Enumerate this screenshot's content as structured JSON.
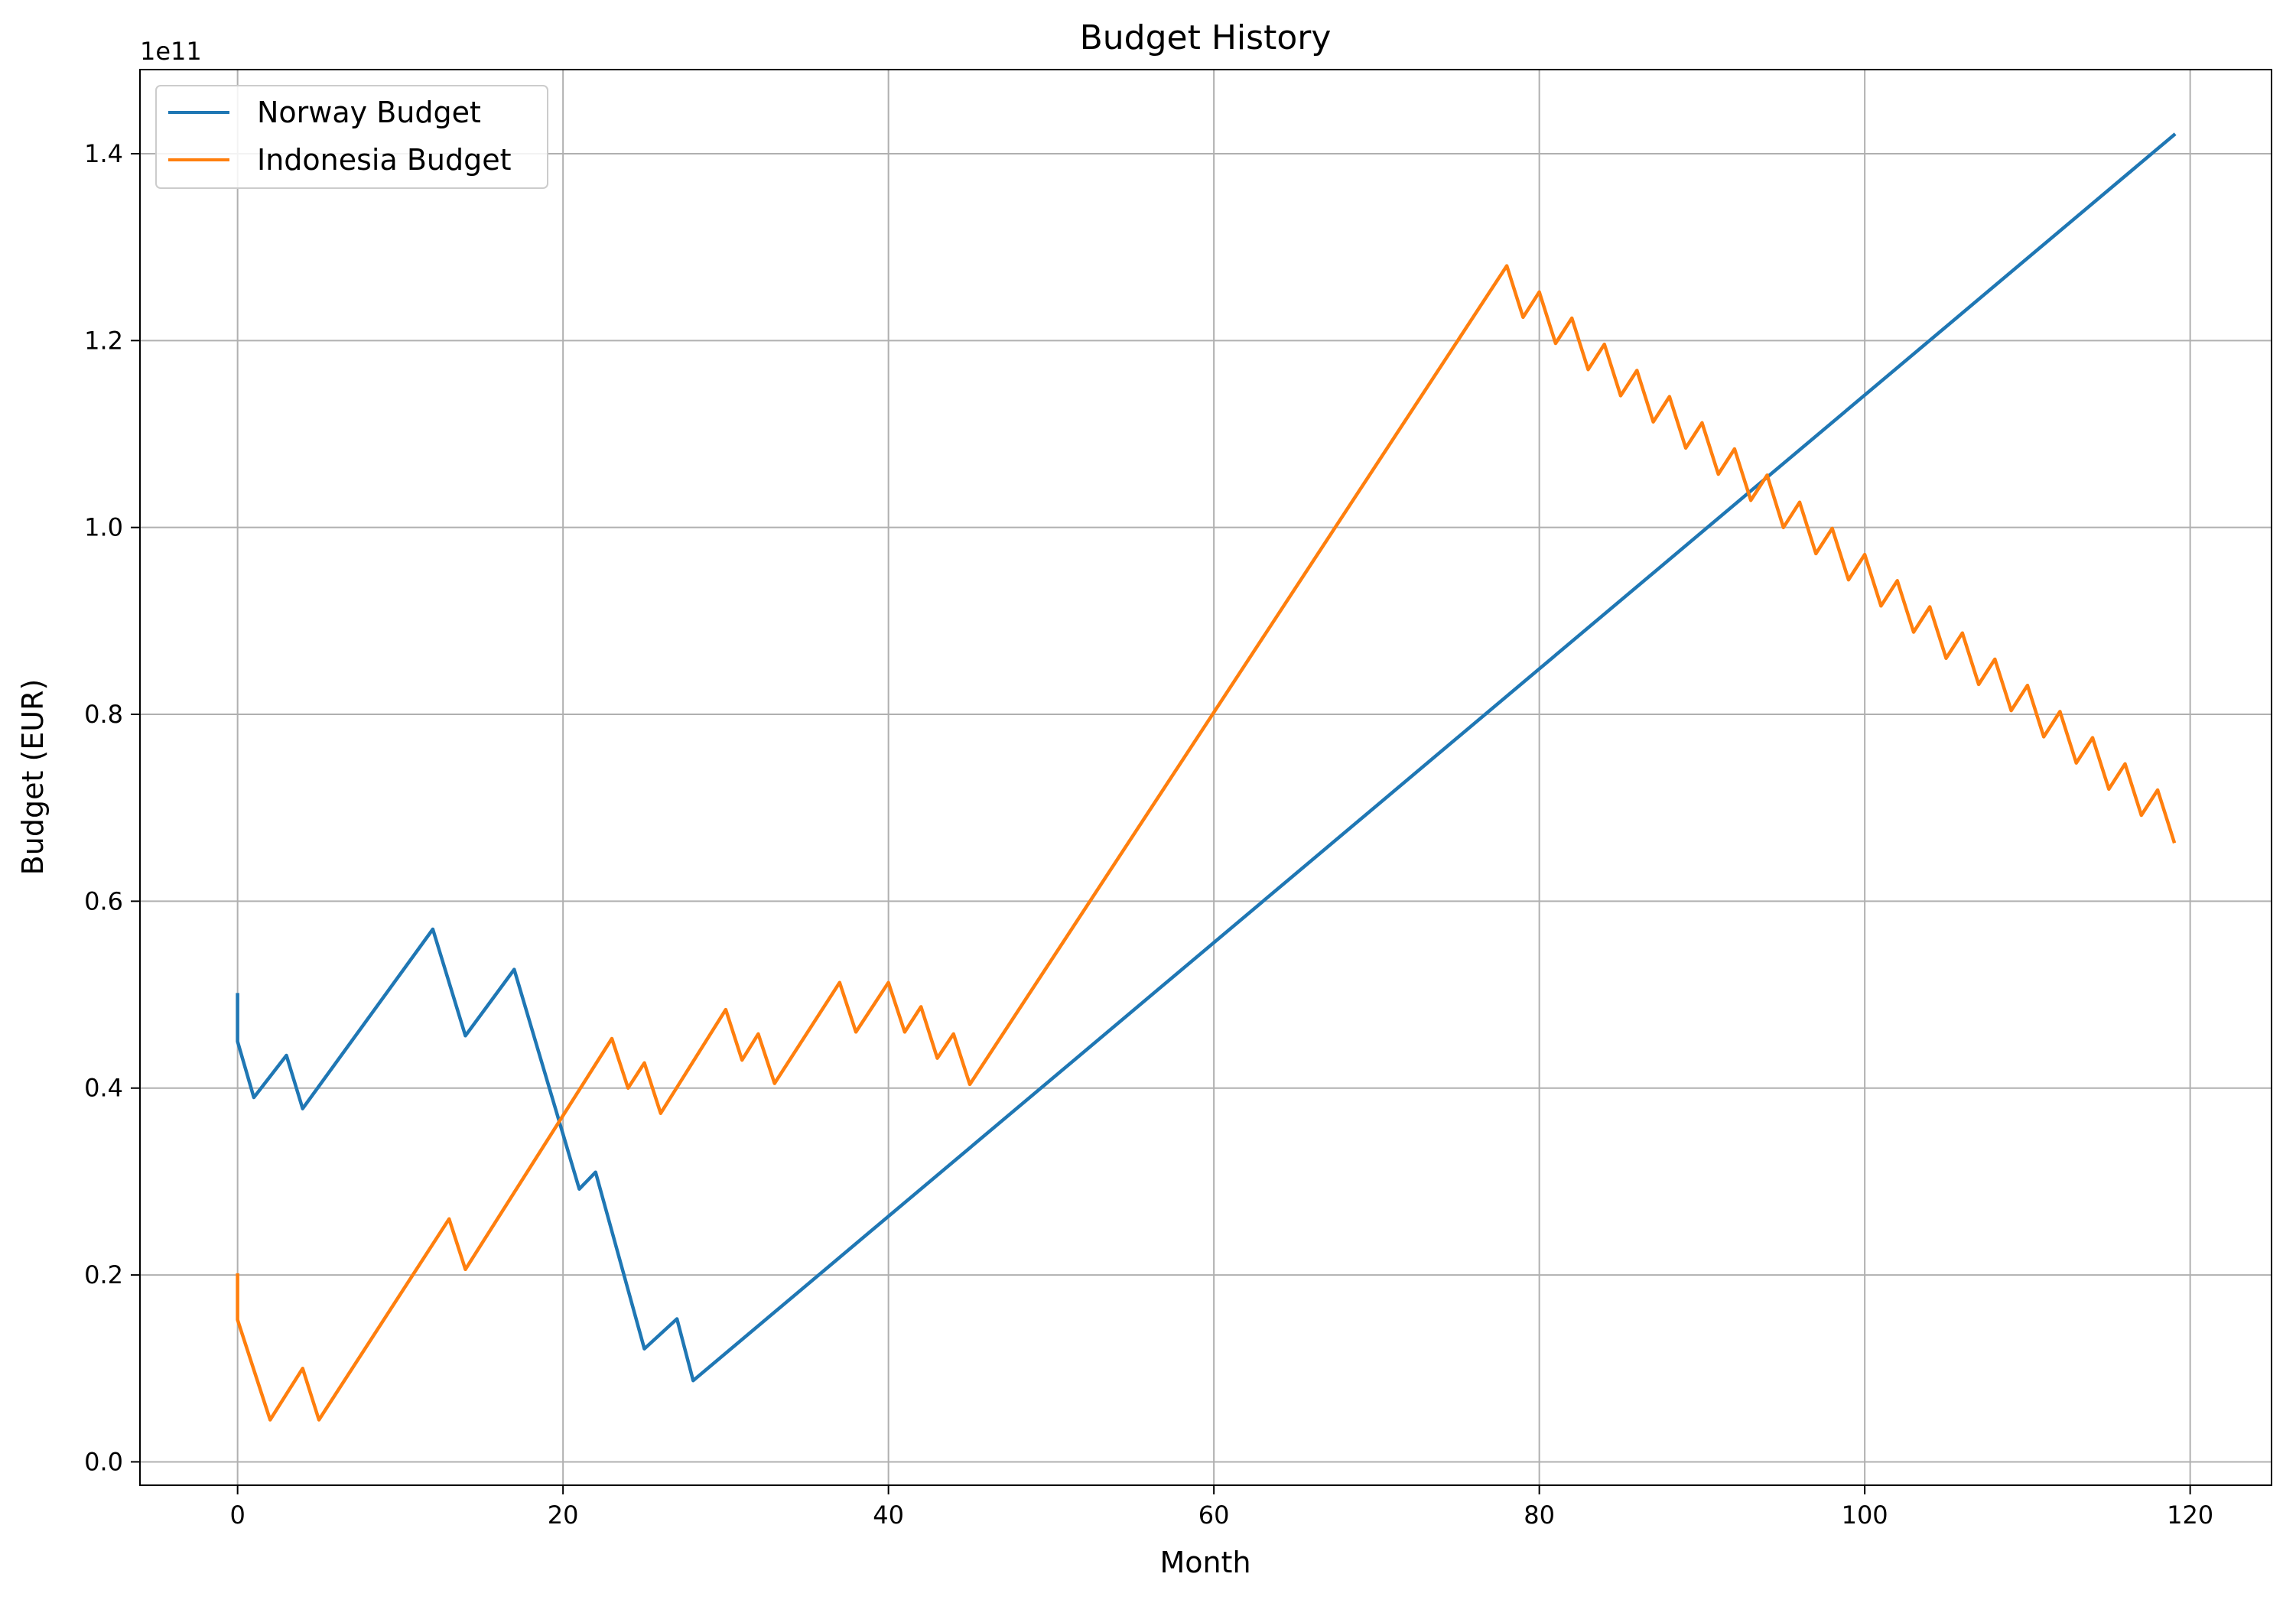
{
  "chart_data": {
    "type": "line",
    "title": "Budget History",
    "xlabel": "Month",
    "ylabel": "Budget (EUR)",
    "y_offset_label": "1e11",
    "xlim": [
      -6,
      125
    ],
    "ylim": [
      -0.025,
      1.49
    ],
    "x_ticks": [
      0,
      20,
      40,
      60,
      80,
      100,
      120
    ],
    "y_ticks": [
      0.0,
      0.2,
      0.4,
      0.6,
      0.8,
      1.0,
      1.2,
      1.4
    ],
    "y_tick_labels": [
      "0.0",
      "0.2",
      "0.4",
      "0.6",
      "0.8",
      "1.0",
      "1.2",
      "1.4"
    ],
    "grid": true,
    "legend_position": "top-left",
    "series": [
      {
        "name": "Norway Budget",
        "color": "#1f77b4",
        "points": [
          [
            0,
            0.5
          ],
          [
            0,
            0.45
          ],
          [
            1,
            0.39
          ],
          [
            3,
            0.435
          ],
          [
            4,
            0.378
          ],
          [
            12,
            0.57
          ],
          [
            14,
            0.456
          ],
          [
            17,
            0.527
          ],
          [
            21,
            0.292
          ],
          [
            22,
            0.31
          ],
          [
            25,
            0.121
          ],
          [
            27,
            0.153
          ],
          [
            28,
            0.087
          ],
          [
            119,
            1.42
          ]
        ]
      },
      {
        "name": "Indonesia Budget",
        "color": "#ff7f0e",
        "points": [
          [
            0,
            0.2
          ],
          [
            0,
            0.152
          ],
          [
            2,
            0.045
          ],
          [
            4,
            0.1
          ],
          [
            5,
            0.045
          ],
          [
            13,
            0.26
          ],
          [
            14,
            0.206
          ],
          [
            23,
            0.453
          ],
          [
            24,
            0.4
          ],
          [
            25,
            0.427
          ],
          [
            26,
            0.373
          ],
          [
            30,
            0.484
          ],
          [
            31,
            0.43
          ],
          [
            32,
            0.458
          ],
          [
            33,
            0.405
          ],
          [
            37,
            0.513
          ],
          [
            38,
            0.46
          ],
          [
            40,
            0.513
          ],
          [
            41,
            0.46
          ],
          [
            42,
            0.487
          ],
          [
            43,
            0.432
          ],
          [
            44,
            0.458
          ],
          [
            45,
            0.404
          ],
          [
            78,
            1.28
          ],
          [
            79,
            1.225
          ],
          [
            80,
            1.252
          ],
          [
            81,
            1.197
          ],
          [
            82,
            1.224
          ],
          [
            83,
            1.169
          ],
          [
            84,
            1.196
          ],
          [
            85,
            1.141
          ],
          [
            86,
            1.168
          ],
          [
            87,
            1.113
          ],
          [
            88,
            1.14
          ],
          [
            89,
            1.085
          ],
          [
            90,
            1.112
          ],
          [
            91,
            1.057
          ],
          [
            92,
            1.084
          ],
          [
            93,
            1.029
          ],
          [
            94,
            1.056
          ],
          [
            95,
            1.0
          ],
          [
            96,
            1.027
          ],
          [
            97,
            0.972
          ],
          [
            98,
            0.999
          ],
          [
            99,
            0.944
          ],
          [
            100,
            0.971
          ],
          [
            101,
            0.916
          ],
          [
            102,
            0.943
          ],
          [
            103,
            0.888
          ],
          [
            104,
            0.915
          ],
          [
            105,
            0.86
          ],
          [
            106,
            0.887
          ],
          [
            107,
            0.832
          ],
          [
            108,
            0.859
          ],
          [
            109,
            0.804
          ],
          [
            110,
            0.831
          ],
          [
            111,
            0.776
          ],
          [
            112,
            0.803
          ],
          [
            113,
            0.748
          ],
          [
            114,
            0.775
          ],
          [
            115,
            0.72
          ],
          [
            116,
            0.747
          ],
          [
            117,
            0.692
          ],
          [
            118,
            0.719
          ],
          [
            119,
            0.664
          ]
        ]
      }
    ]
  }
}
